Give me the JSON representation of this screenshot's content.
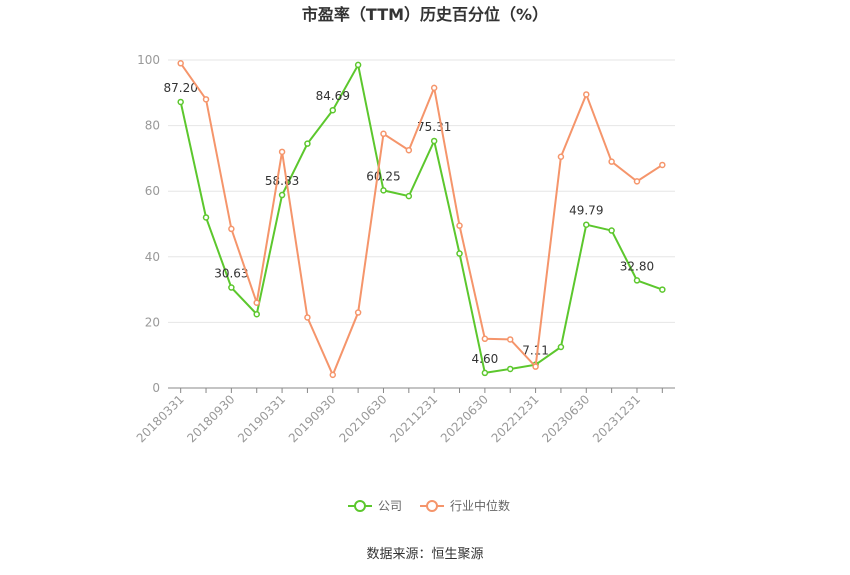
{
  "chart_data": {
    "type": "line",
    "title": "市盈率（TTM）历史百分位（%）",
    "categories": [
      "20180331",
      null,
      "20180930",
      null,
      "20190331",
      null,
      "20190930",
      null,
      "20210630",
      null,
      "20211231",
      null,
      "20220630",
      null,
      "20221231",
      null,
      "20230630",
      null,
      "20231231",
      null
    ],
    "series": [
      {
        "name": "公司",
        "color": "#5cc72d",
        "values": [
          87.2,
          52,
          30.63,
          22.5,
          58.83,
          74.5,
          84.69,
          98.5,
          60.25,
          58.5,
          75.31,
          41,
          4.6,
          5.8,
          7.11,
          12.5,
          49.79,
          48,
          32.8,
          30
        ],
        "value_labels": [
          "87.20",
          null,
          "30.63",
          null,
          "58.83",
          null,
          "84.69",
          null,
          "60.25",
          null,
          "75.31",
          null,
          "4.60",
          null,
          "7.11",
          null,
          "49.79",
          null,
          "32.80",
          null
        ]
      },
      {
        "name": "行业中位数",
        "color": "#f5956b",
        "values": [
          99,
          88,
          48.5,
          26,
          72,
          21.5,
          4,
          23,
          77.5,
          72.5,
          91.5,
          49.5,
          15,
          14.8,
          6.5,
          70.5,
          89.5,
          69,
          63,
          68
        ]
      }
    ],
    "ylim": [
      0,
      100
    ],
    "yticks": [
      0,
      20,
      40,
      60,
      80,
      100
    ],
    "grid": true,
    "source": "数据来源：恒生聚源"
  }
}
